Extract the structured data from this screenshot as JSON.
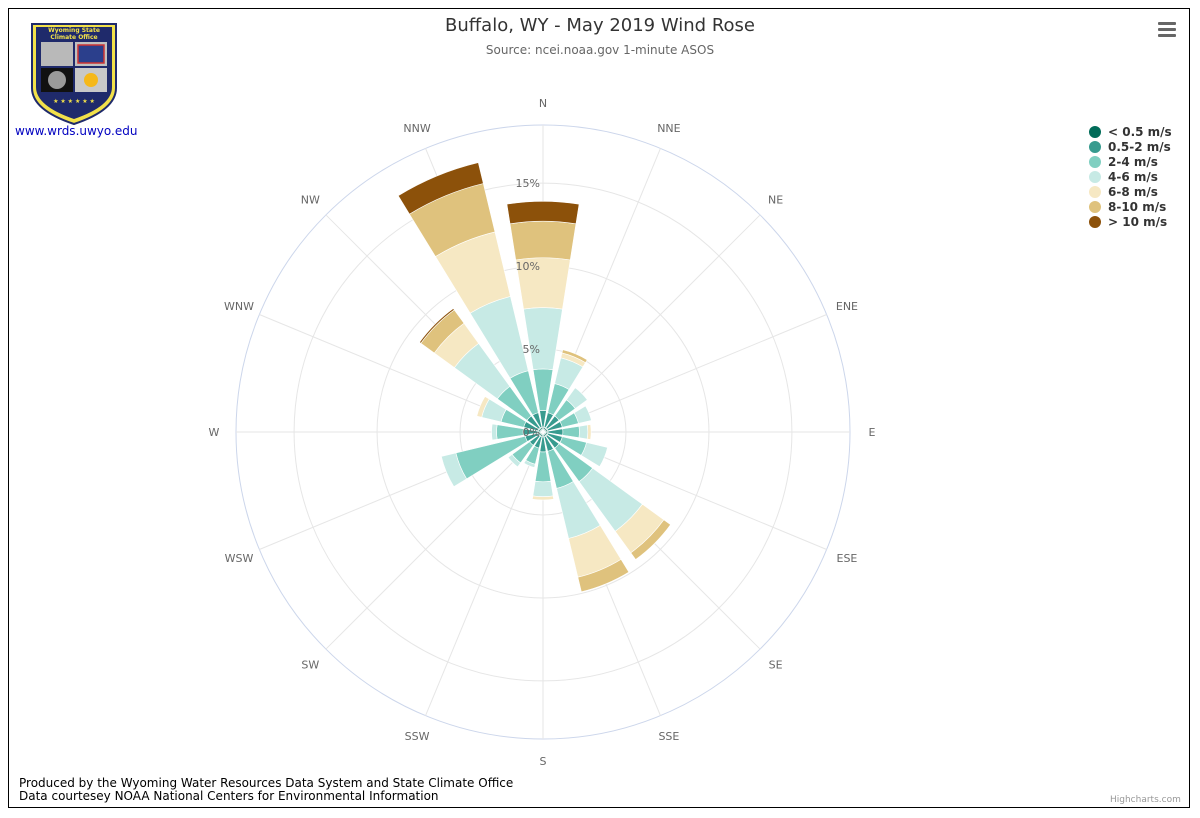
{
  "header": {
    "title": "Buffalo, WY - May 2019 Wind Rose",
    "subtitle": "Source: ncei.noaa.gov 1-minute ASOS"
  },
  "logo": {
    "text_line1": "Wyoming State",
    "text_line2": "Climate Office",
    "stars": "★ ★ ★ ★ ★ ★"
  },
  "link": {
    "text": "www.wrds.uwyo.edu"
  },
  "footer": {
    "line1": "Produced by the Wyoming Water Resources Data System and State Climate Office",
    "line2": "Data courtesey NOAA National Centers for Environmental Information"
  },
  "credits": "Highcharts.com",
  "chart_data": {
    "type": "windrose",
    "directions": [
      "N",
      "NNE",
      "NE",
      "ENE",
      "E",
      "ESE",
      "SE",
      "SSE",
      "S",
      "SSW",
      "SW",
      "WSW",
      "W",
      "WNW",
      "NW",
      "NNW"
    ],
    "radial_ticks": [
      "0%",
      "5%",
      "10%",
      "15%"
    ],
    "radial_max": 18.5,
    "grid": true,
    "legend_position": "top-right",
    "series": [
      {
        "name": "< 0.5 m/s",
        "color": "#016c59",
        "values": [
          0.3,
          0.3,
          0.3,
          0.3,
          0.3,
          0.3,
          0.3,
          0.3,
          0.3,
          0.3,
          0.3,
          0.3,
          0.3,
          0.3,
          0.3,
          0.3
        ]
      },
      {
        "name": "0.5-2 m/s",
        "color": "#379b8f",
        "values": [
          1.0,
          0.9,
          0.9,
          0.9,
          0.9,
          0.9,
          0.9,
          0.9,
          0.9,
          0.7,
          0.7,
          0.8,
          0.9,
          0.9,
          0.9,
          0.9
        ]
      },
      {
        "name": "2-4 m/s",
        "color": "#80cfc1",
        "values": [
          2.5,
          1.8,
          1.2,
          1.0,
          1.0,
          1.5,
          2.5,
          2.3,
          1.8,
          1.0,
          1.3,
          4.3,
          1.6,
          1.4,
          2.2,
          2.6
        ]
      },
      {
        "name": "4-6 m/s",
        "color": "#c7eae5",
        "values": [
          3.7,
          1.6,
          0.9,
          0.8,
          0.5,
          1.3,
          3.7,
          3.1,
          0.9,
          0.2,
          0.3,
          0.9,
          0.3,
          1.2,
          3.2,
          4.6
        ]
      },
      {
        "name": "6-8 m/s",
        "color": "#f6e8c3",
        "values": [
          3.0,
          0.3,
          0.0,
          0.0,
          0.2,
          0.0,
          1.6,
          2.4,
          0.2,
          0.0,
          0.0,
          0.0,
          0.0,
          0.3,
          1.5,
          4.0
        ]
      },
      {
        "name": "8-10 m/s",
        "color": "#dfc27d",
        "values": [
          2.2,
          0.2,
          0.0,
          0.0,
          0.0,
          0.0,
          0.5,
          0.9,
          0.0,
          0.0,
          0.0,
          0.0,
          0.0,
          0.0,
          1.0,
          3.0
        ]
      },
      {
        "name": "> 10 m/s",
        "color": "#8c510a",
        "values": [
          1.2,
          0.0,
          0.0,
          0.0,
          0.0,
          0.0,
          0.0,
          0.0,
          0.0,
          0.0,
          0.0,
          0.0,
          0.0,
          0.0,
          0.1,
          1.3
        ]
      }
    ]
  }
}
